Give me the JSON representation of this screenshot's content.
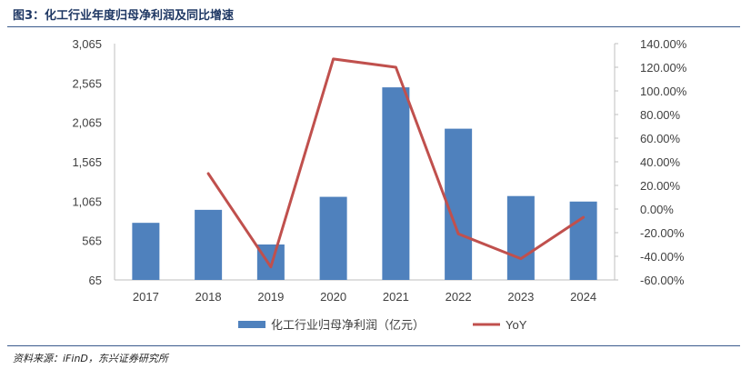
{
  "figure": {
    "title": "图3：化工行业年度归母净利润及同比增速",
    "source": "资料来源：iFinD，东兴证券研究所"
  },
  "chart_data": {
    "type": "bar",
    "categories": [
      "2017",
      "2018",
      "2019",
      "2020",
      "2021",
      "2022",
      "2023",
      "2024"
    ],
    "series": [
      {
        "name": "化工行业归母净利润（亿元）",
        "type": "bar",
        "axis": "left",
        "color": "#4f81bd",
        "values": [
          790,
          955,
          515,
          1120,
          2510,
          1985,
          1130,
          1060
        ]
      },
      {
        "name": "YoY",
        "type": "line",
        "axis": "right",
        "color": "#c0504d",
        "values": [
          null,
          30.0,
          -49.0,
          127.0,
          120.0,
          -21.0,
          -42.0,
          -7.0
        ]
      }
    ],
    "left_axis": {
      "min": 65,
      "max": 3065,
      "ticks": [
        "65",
        "565",
        "1,065",
        "1,565",
        "2,065",
        "2,565",
        "3,065"
      ]
    },
    "right_axis": {
      "min": -60,
      "max": 140,
      "ticks": [
        "-60.00%",
        "-40.00%",
        "-20.00%",
        "0.00%",
        "20.00%",
        "40.00%",
        "60.00%",
        "80.00%",
        "100.00%",
        "120.00%",
        "140.00%"
      ]
    },
    "legend_position": "bottom",
    "grid": false
  }
}
